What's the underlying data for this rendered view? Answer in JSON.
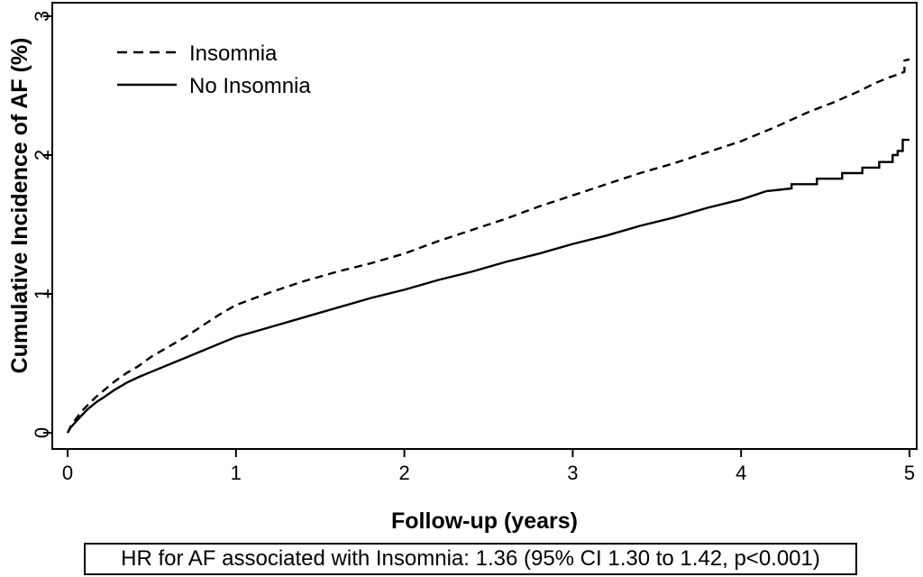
{
  "figure": {
    "background_color": "#ffffff",
    "line_color": "#000000"
  },
  "chart_data": {
    "type": "line",
    "title": "",
    "xlabel": "Follow-up (years)",
    "ylabel": "Cumulative Incidence of AF (%)",
    "xlim": [
      0,
      5
    ],
    "ylim": [
      0,
      3
    ],
    "xticks": [
      "0",
      "1",
      "2",
      "3",
      "4",
      "5"
    ],
    "xtick_values": [
      0,
      1,
      2,
      3,
      4,
      5
    ],
    "yticks": [
      "0",
      "1",
      "2",
      "3"
    ],
    "ytick_values": [
      0,
      1,
      2,
      3
    ],
    "grid": false,
    "legend_position": "top-left-inside",
    "annotation": "HR for AF associated with Insomnia: 1.36 (95% CI 1.30 to 1.42, p<0.001)",
    "series": [
      {
        "name": "Insomnia",
        "line_style": "dashed",
        "color": "#000000",
        "points": [
          [
            0,
            0
          ],
          [
            0.02,
            0.05
          ],
          [
            0.05,
            0.1
          ],
          [
            0.08,
            0.15
          ],
          [
            0.12,
            0.2
          ],
          [
            0.17,
            0.26
          ],
          [
            0.22,
            0.31
          ],
          [
            0.28,
            0.37
          ],
          [
            0.35,
            0.43
          ],
          [
            0.42,
            0.48
          ],
          [
            0.5,
            0.55
          ],
          [
            0.6,
            0.62
          ],
          [
            0.7,
            0.69
          ],
          [
            0.8,
            0.77
          ],
          [
            0.9,
            0.85
          ],
          [
            1.0,
            0.92
          ],
          [
            1.2,
            1.01
          ],
          [
            1.4,
            1.09
          ],
          [
            1.6,
            1.16
          ],
          [
            1.8,
            1.22
          ],
          [
            2.0,
            1.29
          ],
          [
            2.2,
            1.38
          ],
          [
            2.4,
            1.46
          ],
          [
            2.6,
            1.54
          ],
          [
            2.8,
            1.63
          ],
          [
            3.0,
            1.71
          ],
          [
            3.2,
            1.79
          ],
          [
            3.4,
            1.87
          ],
          [
            3.6,
            1.94
          ],
          [
            3.8,
            2.02
          ],
          [
            4.0,
            2.1
          ],
          [
            4.2,
            2.2
          ],
          [
            4.4,
            2.31
          ],
          [
            4.55,
            2.38
          ],
          [
            4.7,
            2.46
          ],
          [
            4.8,
            2.52
          ],
          [
            4.88,
            2.56
          ],
          [
            4.93,
            2.58
          ],
          [
            4.97,
            2.6
          ],
          [
            4.97,
            2.68
          ],
          [
            5.0,
            2.69
          ]
        ]
      },
      {
        "name": "No Insomnia",
        "line_style": "solid",
        "color": "#000000",
        "points": [
          [
            0,
            0
          ],
          [
            0.02,
            0.04
          ],
          [
            0.05,
            0.08
          ],
          [
            0.08,
            0.12
          ],
          [
            0.12,
            0.17
          ],
          [
            0.17,
            0.22
          ],
          [
            0.22,
            0.26
          ],
          [
            0.28,
            0.31
          ],
          [
            0.35,
            0.36
          ],
          [
            0.42,
            0.4
          ],
          [
            0.5,
            0.44
          ],
          [
            0.6,
            0.49
          ],
          [
            0.7,
            0.54
          ],
          [
            0.8,
            0.59
          ],
          [
            0.9,
            0.64
          ],
          [
            1.0,
            0.69
          ],
          [
            1.2,
            0.76
          ],
          [
            1.4,
            0.83
          ],
          [
            1.6,
            0.9
          ],
          [
            1.8,
            0.97
          ],
          [
            2.0,
            1.03
          ],
          [
            2.2,
            1.1
          ],
          [
            2.4,
            1.16
          ],
          [
            2.6,
            1.23
          ],
          [
            2.8,
            1.29
          ],
          [
            3.0,
            1.36
          ],
          [
            3.2,
            1.42
          ],
          [
            3.4,
            1.49
          ],
          [
            3.6,
            1.55
          ],
          [
            3.8,
            1.62
          ],
          [
            4.0,
            1.68
          ],
          [
            4.15,
            1.74
          ],
          [
            4.3,
            1.76
          ],
          [
            4.3,
            1.79
          ],
          [
            4.45,
            1.79
          ],
          [
            4.45,
            1.83
          ],
          [
            4.6,
            1.83
          ],
          [
            4.6,
            1.87
          ],
          [
            4.72,
            1.87
          ],
          [
            4.72,
            1.91
          ],
          [
            4.82,
            1.91
          ],
          [
            4.82,
            1.95
          ],
          [
            4.9,
            1.95
          ],
          [
            4.9,
            2.0
          ],
          [
            4.93,
            2.0
          ],
          [
            4.93,
            2.03
          ],
          [
            4.96,
            2.03
          ],
          [
            4.96,
            2.11
          ],
          [
            5.0,
            2.11
          ]
        ]
      }
    ]
  }
}
